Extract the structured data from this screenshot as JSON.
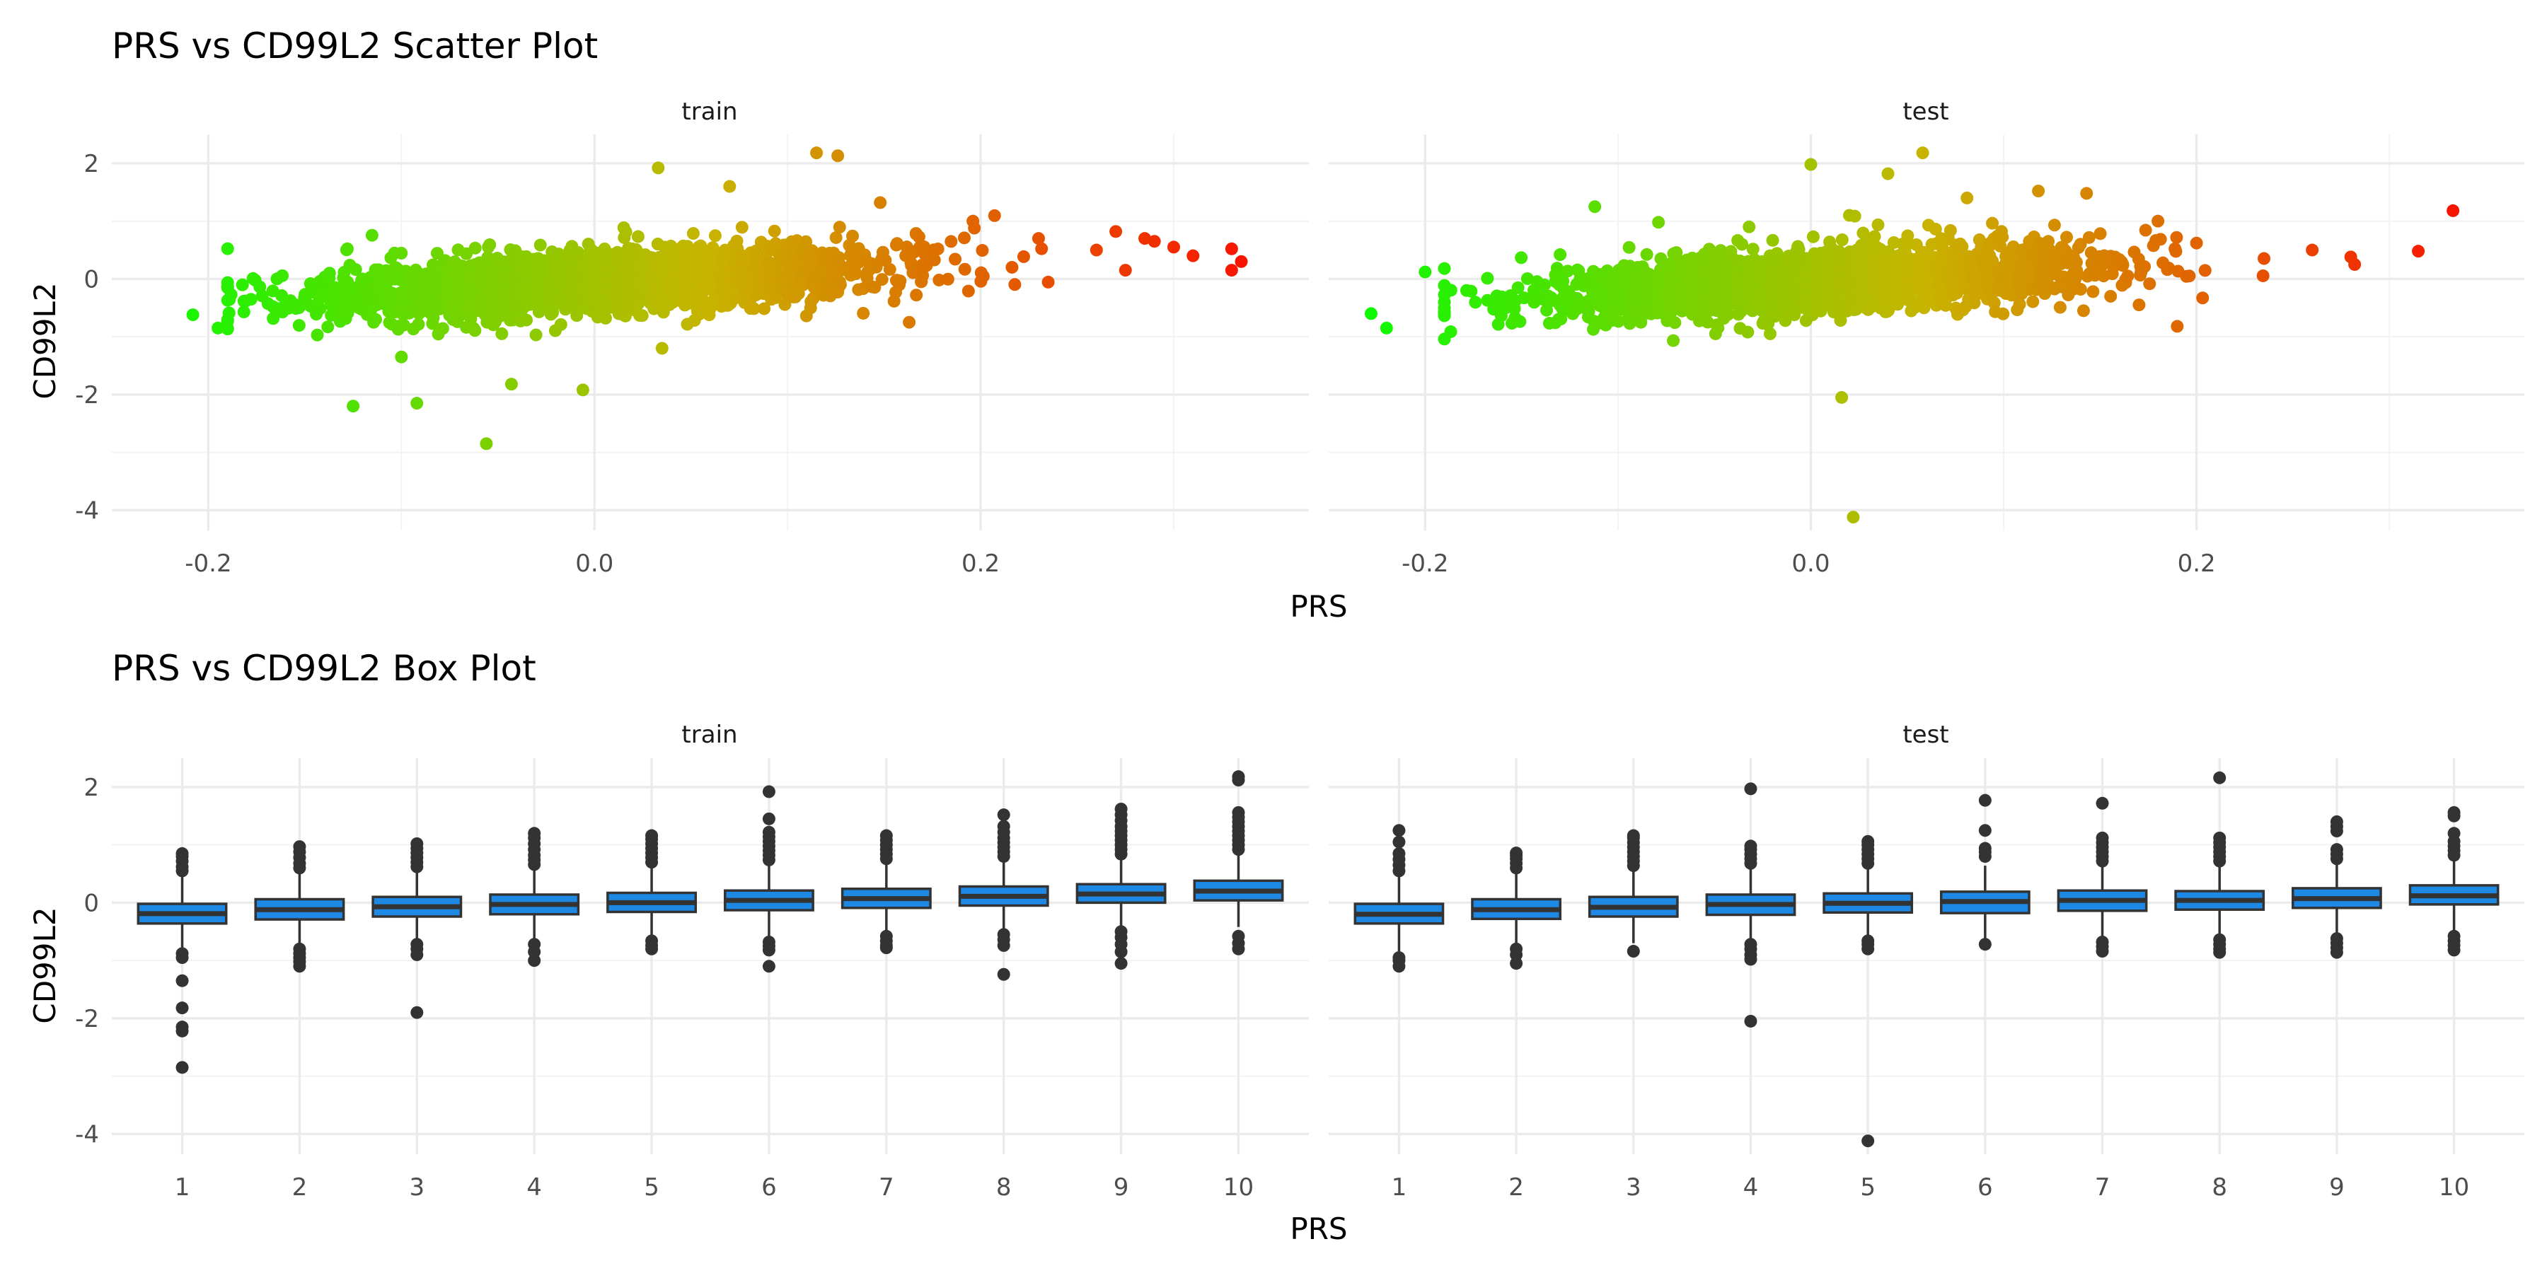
{
  "chart_data": [
    {
      "type": "scatter",
      "title": "PRS vs CD99L2 Scatter Plot",
      "xlabel": "PRS",
      "ylabel": "CD99L2",
      "facets": [
        "train",
        "test"
      ],
      "xlim": [
        -0.25,
        0.37
      ],
      "ylim": [
        -4.35,
        2.5
      ],
      "xticks": [
        -0.2,
        0.0,
        0.2
      ],
      "xtick_labels": [
        "-0.2",
        "0.0",
        "0.2"
      ],
      "yticks": [
        -4,
        -2,
        0,
        2
      ],
      "ytick_labels": [
        "-4",
        "-2",
        "0",
        "2"
      ],
      "grid": true,
      "legend": "none",
      "color_scale": [
        "#00ff00",
        "#ff0000"
      ],
      "trend": {
        "intercept": -0.05,
        "slope": 1.8
      },
      "cluster": {
        "n": 2200,
        "sd_x": 0.072,
        "sd_y": 0.27
      },
      "outliers": {
        "train": [
          [
            -0.208,
            -0.62
          ],
          [
            -0.195,
            -0.85
          ],
          [
            -0.128,
            0.52
          ],
          [
            -0.125,
            -2.2
          ],
          [
            -0.1,
            -1.35
          ],
          [
            -0.092,
            -2.15
          ],
          [
            -0.055,
            0.55
          ],
          [
            -0.043,
            -1.82
          ],
          [
            -0.056,
            -2.85
          ],
          [
            -0.006,
            -1.92
          ],
          [
            0.033,
            1.92
          ],
          [
            0.07,
            1.6
          ],
          [
            0.115,
            2.18
          ],
          [
            0.126,
            2.13
          ],
          [
            0.148,
            1.32
          ],
          [
            0.196,
            1.0
          ],
          [
            0.23,
            0.7
          ],
          [
            0.26,
            0.5
          ],
          [
            0.27,
            0.82
          ],
          [
            0.285,
            0.7
          ],
          [
            0.29,
            0.65
          ],
          [
            0.3,
            0.55
          ],
          [
            0.31,
            0.4
          ],
          [
            0.33,
            0.52
          ],
          [
            0.335,
            0.3
          ],
          [
            0.33,
            0.15
          ],
          [
            0.035,
            -1.2
          ],
          [
            0.163,
            -0.75
          ],
          [
            0.275,
            0.15
          ]
        ],
        "test": [
          [
            -0.228,
            -0.6
          ],
          [
            -0.22,
            -0.85
          ],
          [
            -0.2,
            0.12
          ],
          [
            -0.19,
            0.18
          ],
          [
            -0.13,
            0.42
          ],
          [
            -0.112,
            1.25
          ],
          [
            -0.079,
            0.98
          ],
          [
            -0.032,
            0.9
          ],
          [
            0.0,
            1.98
          ],
          [
            0.02,
            1.1
          ],
          [
            0.04,
            1.82
          ],
          [
            0.058,
            2.18
          ],
          [
            0.081,
            1.4
          ],
          [
            0.118,
            1.52
          ],
          [
            0.143,
            1.48
          ],
          [
            0.016,
            -2.05
          ],
          [
            0.022,
            -4.12
          ],
          [
            0.19,
            -0.82
          ],
          [
            0.2,
            0.62
          ],
          [
            0.26,
            0.5
          ],
          [
            0.28,
            0.38
          ],
          [
            0.282,
            0.25
          ],
          [
            0.315,
            0.48
          ],
          [
            0.333,
            1.18
          ],
          [
            0.18,
            1.0
          ]
        ]
      }
    },
    {
      "type": "box",
      "title": "PRS vs CD99L2 Box Plot",
      "xlabel": "PRS",
      "ylabel": "CD99L2",
      "facets": [
        "train",
        "test"
      ],
      "categories": [
        "1",
        "2",
        "3",
        "4",
        "5",
        "6",
        "7",
        "8",
        "9",
        "10"
      ],
      "ylim": [
        -4.35,
        2.5
      ],
      "yticks": [
        -4,
        -2,
        0,
        2
      ],
      "ytick_labels": [
        "-4",
        "-2",
        "0",
        "2"
      ],
      "box_color": "#1e88e5",
      "grid": true,
      "series": [
        {
          "name": "train",
          "boxes": [
            {
              "q1": -0.36,
              "median": -0.19,
              "q3": -0.02,
              "whislo": -0.84,
              "whishi": 0.46,
              "outliers": [
                0.55,
                0.62,
                0.72,
                0.8,
                0.85,
                -0.88,
                -0.95,
                -1.35,
                -1.82,
                -2.15,
                -2.22,
                -2.85
              ]
            },
            {
              "q1": -0.29,
              "median": -0.12,
              "q3": 0.06,
              "whislo": -0.75,
              "whishi": 0.52,
              "outliers": [
                0.6,
                0.68,
                0.78,
                0.88,
                0.97,
                -0.8,
                -0.88,
                -0.95,
                -1.02,
                -1.1
              ]
            },
            {
              "q1": -0.24,
              "median": -0.07,
              "q3": 0.1,
              "whislo": -0.7,
              "whishi": 0.56,
              "outliers": [
                0.62,
                0.7,
                0.78,
                0.86,
                0.94,
                1.02,
                -0.72,
                -0.8,
                -0.9,
                -1.9
              ]
            },
            {
              "q1": -0.2,
              "median": -0.03,
              "q3": 0.14,
              "whislo": -0.68,
              "whishi": 0.6,
              "outliers": [
                0.66,
                0.74,
                0.82,
                0.92,
                1.02,
                1.12,
                1.2,
                -0.72,
                -0.85,
                -1.0
              ]
            },
            {
              "q1": -0.16,
              "median": 0.0,
              "q3": 0.17,
              "whislo": -0.62,
              "whishi": 0.63,
              "outliers": [
                0.7,
                0.78,
                0.86,
                0.94,
                1.02,
                1.1,
                1.16,
                -0.66,
                -0.74,
                -0.8
              ]
            },
            {
              "q1": -0.13,
              "median": 0.04,
              "q3": 0.21,
              "whislo": -0.6,
              "whishi": 0.67,
              "outliers": [
                0.74,
                0.82,
                0.9,
                0.98,
                1.06,
                1.14,
                1.22,
                1.45,
                1.92,
                -0.68,
                -0.75,
                -0.82,
                -1.1
              ]
            },
            {
              "q1": -0.09,
              "median": 0.07,
              "q3": 0.24,
              "whislo": -0.55,
              "whishi": 0.7,
              "outliers": [
                0.76,
                0.84,
                0.92,
                1.0,
                1.08,
                1.16,
                -0.58,
                -0.66,
                -0.74,
                -0.78
              ]
            },
            {
              "q1": -0.05,
              "median": 0.11,
              "q3": 0.28,
              "whislo": -0.52,
              "whishi": 0.74,
              "outliers": [
                0.8,
                0.88,
                0.96,
                1.04,
                1.12,
                1.22,
                1.32,
                1.52,
                -0.55,
                -0.64,
                -0.74,
                -1.24
              ]
            },
            {
              "q1": 0.0,
              "median": 0.15,
              "q3": 0.32,
              "whislo": -0.46,
              "whishi": 0.78,
              "outliers": [
                0.84,
                0.92,
                1.0,
                1.08,
                1.16,
                1.24,
                1.32,
                1.42,
                1.52,
                1.62,
                -0.5,
                -0.6,
                -0.72,
                -0.85,
                -1.05
              ]
            },
            {
              "q1": 0.04,
              "median": 0.2,
              "q3": 0.38,
              "whislo": -0.42,
              "whishi": 0.86,
              "outliers": [
                0.92,
                1.0,
                1.08,
                1.16,
                1.24,
                1.32,
                1.4,
                1.48,
                1.56,
                2.12,
                2.18,
                -0.58,
                -0.7,
                -0.8
              ]
            }
          ]
        },
        {
          "name": "test",
          "boxes": [
            {
              "q1": -0.36,
              "median": -0.2,
              "q3": -0.02,
              "whislo": -0.84,
              "whishi": 0.45,
              "outliers": [
                0.55,
                0.65,
                0.75,
                0.85,
                1.05,
                1.25,
                -0.95,
                -1.0,
                -1.1
              ]
            },
            {
              "q1": -0.28,
              "median": -0.12,
              "q3": 0.06,
              "whislo": -0.74,
              "whishi": 0.52,
              "outliers": [
                0.6,
                0.68,
                0.76,
                0.82,
                0.86,
                -0.8,
                -0.9,
                -1.05
              ]
            },
            {
              "q1": -0.24,
              "median": -0.08,
              "q3": 0.1,
              "whislo": -0.7,
              "whishi": 0.56,
              "outliers": [
                0.64,
                0.72,
                0.8,
                0.88,
                0.96,
                1.04,
                1.12,
                1.16,
                -0.84
              ]
            },
            {
              "q1": -0.21,
              "median": -0.03,
              "q3": 0.14,
              "whislo": -0.68,
              "whishi": 0.6,
              "outliers": [
                0.68,
                0.76,
                0.84,
                0.92,
                0.98,
                1.97,
                -0.72,
                -0.8,
                -0.9,
                -0.98,
                -2.05
              ]
            },
            {
              "q1": -0.17,
              "median": -0.01,
              "q3": 0.16,
              "whislo": -0.62,
              "whishi": 0.62,
              "outliers": [
                0.68,
                0.76,
                0.84,
                0.92,
                1.0,
                1.06,
                -0.66,
                -0.72,
                -0.8,
                -4.12
              ]
            },
            {
              "q1": -0.18,
              "median": 0.02,
              "q3": 0.19,
              "whislo": -0.64,
              "whishi": 0.64,
              "outliers": [
                0.8,
                0.88,
                0.94,
                1.25,
                1.77,
                -0.72
              ]
            },
            {
              "q1": -0.14,
              "median": 0.04,
              "q3": 0.21,
              "whislo": -0.6,
              "whishi": 0.66,
              "outliers": [
                0.72,
                0.8,
                0.88,
                0.96,
                1.04,
                1.12,
                1.72,
                -0.68,
                -0.76,
                -0.84
              ]
            },
            {
              "q1": -0.12,
              "median": 0.04,
              "q3": 0.2,
              "whislo": -0.58,
              "whishi": 0.65,
              "outliers": [
                0.72,
                0.8,
                0.88,
                0.96,
                1.04,
                1.12,
                2.16,
                -0.64,
                -0.72,
                -0.8,
                -0.86
              ]
            },
            {
              "q1": -0.09,
              "median": 0.07,
              "q3": 0.25,
              "whislo": -0.56,
              "whishi": 0.7,
              "outliers": [
                0.76,
                0.84,
                0.92,
                1.24,
                1.32,
                1.4,
                -0.62,
                -0.7,
                -0.78,
                -0.86
              ]
            },
            {
              "q1": -0.03,
              "median": 0.12,
              "q3": 0.3,
              "whislo": -0.5,
              "whishi": 0.76,
              "outliers": [
                0.82,
                0.9,
                0.98,
                1.06,
                1.2,
                1.5,
                1.56,
                -0.58,
                -0.66,
                -0.74,
                -0.82
              ]
            }
          ]
        }
      ]
    }
  ]
}
